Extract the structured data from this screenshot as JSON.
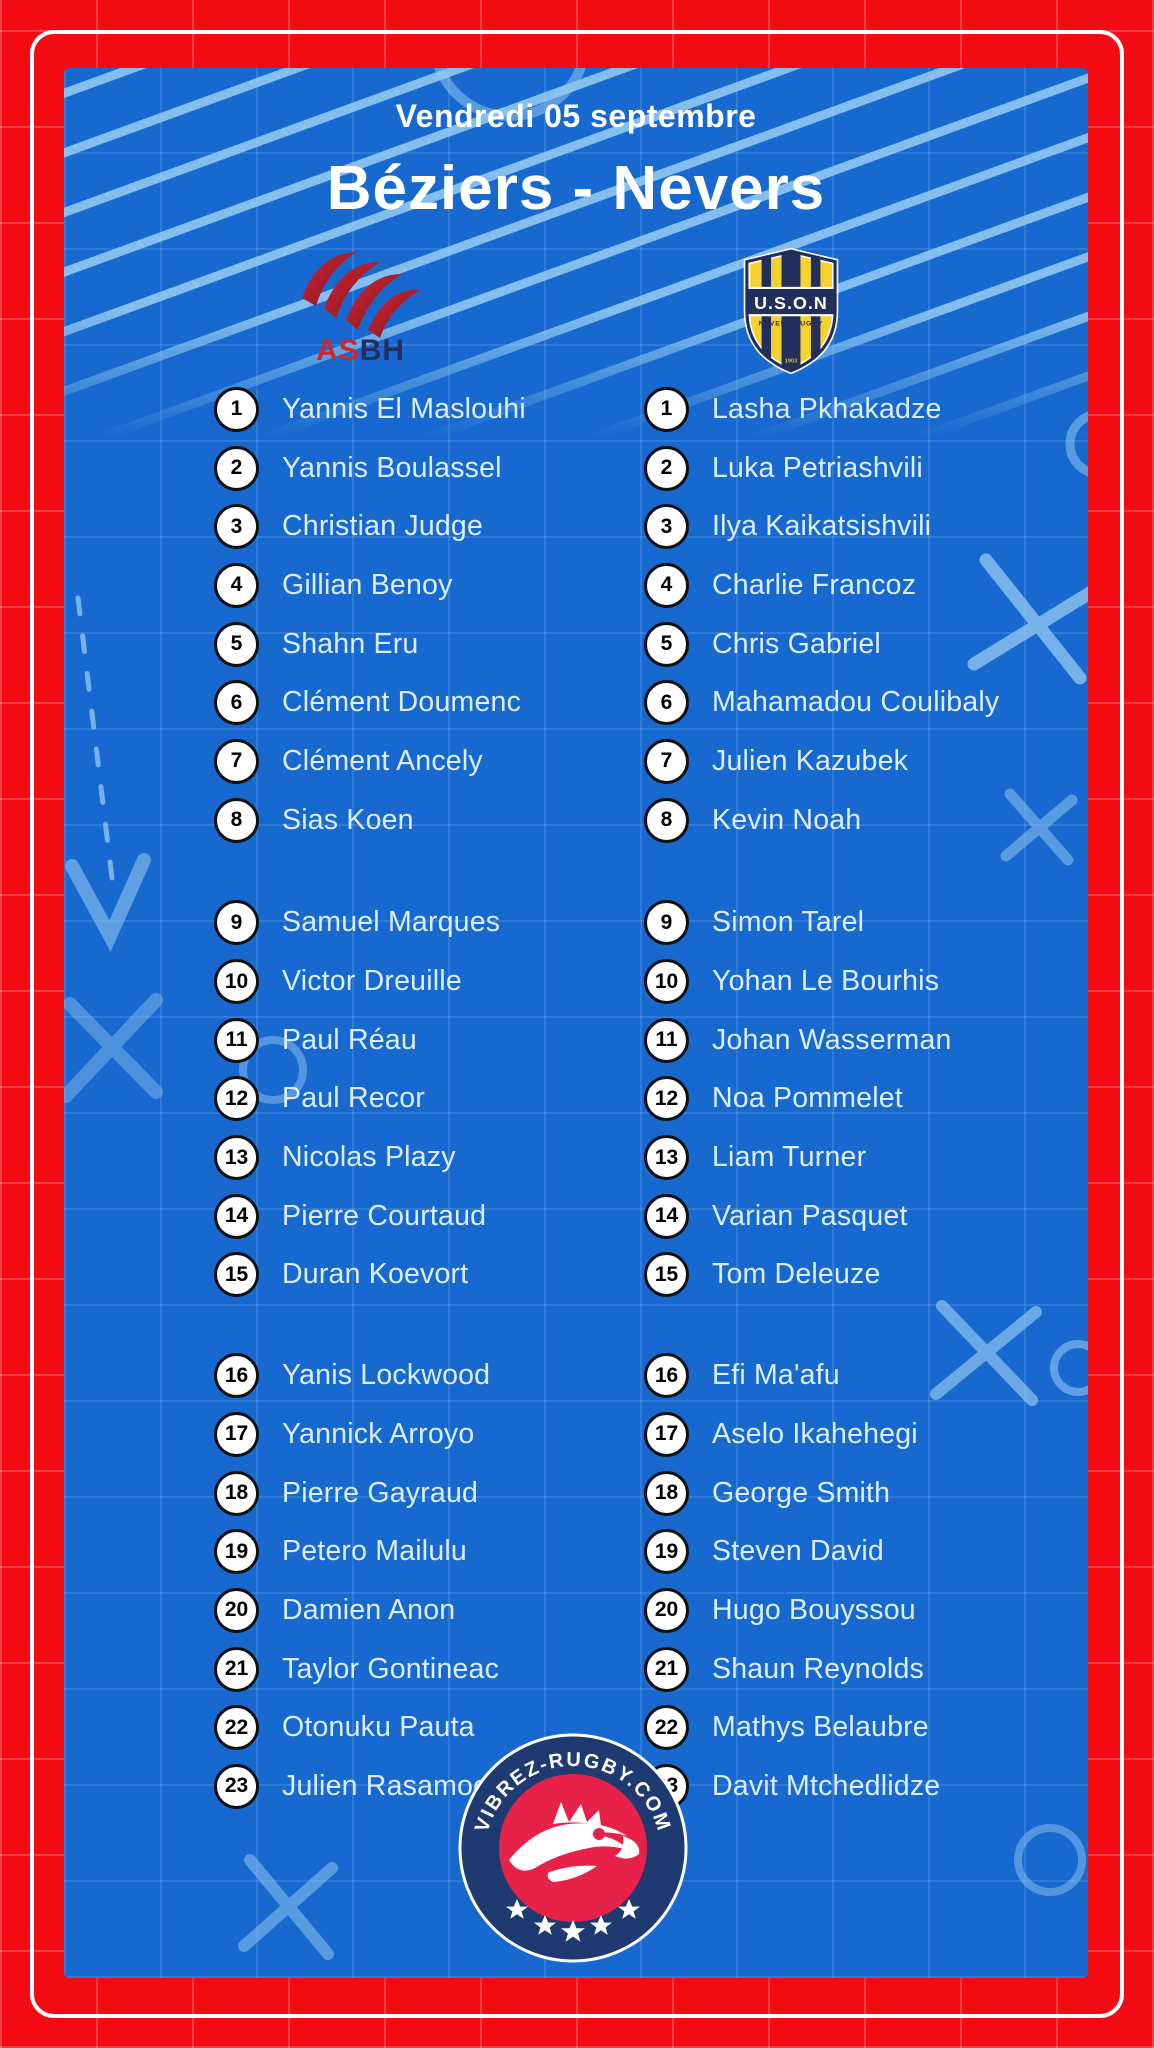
{
  "header": {
    "date": "Vendredi 05 septembre",
    "title": "Béziers - Nevers"
  },
  "teams": {
    "home": {
      "name": "Béziers",
      "crest": "asbh-crest",
      "crest_text_primary": "AS",
      "crest_text_secondary": "BH",
      "players": [
        {
          "num": 1,
          "name": "Yannis El Maslouhi"
        },
        {
          "num": 2,
          "name": "Yannis Boulassel"
        },
        {
          "num": 3,
          "name": "Christian Judge"
        },
        {
          "num": 4,
          "name": "Gillian Benoy"
        },
        {
          "num": 5,
          "name": "Shahn Eru"
        },
        {
          "num": 6,
          "name": "Clément Doumenc"
        },
        {
          "num": 7,
          "name": "Clément Ancely"
        },
        {
          "num": 8,
          "name": "Sias Koen"
        },
        {
          "num": 9,
          "name": "Samuel Marques"
        },
        {
          "num": 10,
          "name": "Victor Dreuille"
        },
        {
          "num": 11,
          "name": "Paul Réau"
        },
        {
          "num": 12,
          "name": "Paul Recor"
        },
        {
          "num": 13,
          "name": "Nicolas Plazy"
        },
        {
          "num": 14,
          "name": "Pierre Courtaud"
        },
        {
          "num": 15,
          "name": "Duran Koevort"
        },
        {
          "num": 16,
          "name": "Yanis Lockwood"
        },
        {
          "num": 17,
          "name": "Yannick Arroyo"
        },
        {
          "num": 18,
          "name": "Pierre Gayraud"
        },
        {
          "num": 19,
          "name": "Petero Mailulu"
        },
        {
          "num": 20,
          "name": "Damien Anon"
        },
        {
          "num": 21,
          "name": "Taylor Gontineac"
        },
        {
          "num": 22,
          "name": "Otonuku Pauta"
        },
        {
          "num": 23,
          "name": "Julien Rasamoelina"
        }
      ]
    },
    "away": {
      "name": "Nevers",
      "crest": "uson-crest",
      "crest_text": "U.S.O.N",
      "crest_subtext": "NEVERS RUGBY",
      "crest_year": "1903",
      "players": [
        {
          "num": 1,
          "name": "Lasha Pkhakadze"
        },
        {
          "num": 2,
          "name": "Luka Petriashvili"
        },
        {
          "num": 3,
          "name": "Ilya Kaikatsishvili"
        },
        {
          "num": 4,
          "name": "Charlie Francoz"
        },
        {
          "num": 5,
          "name": "Chris Gabriel"
        },
        {
          "num": 6,
          "name": "Mahamadou Coulibaly"
        },
        {
          "num": 7,
          "name": "Julien Kazubek"
        },
        {
          "num": 8,
          "name": "Kevin Noah"
        },
        {
          "num": 9,
          "name": "Simon Tarel"
        },
        {
          "num": 10,
          "name": "Yohan Le Bourhis"
        },
        {
          "num": 11,
          "name": "Johan Wasserman"
        },
        {
          "num": 12,
          "name": "Noa Pommelet"
        },
        {
          "num": 13,
          "name": "Liam Turner"
        },
        {
          "num": 14,
          "name": "Varian Pasquet"
        },
        {
          "num": 15,
          "name": "Tom Deleuze"
        },
        {
          "num": 16,
          "name": "Efi Ma'afu"
        },
        {
          "num": 17,
          "name": "Aselo Ikahehegi"
        },
        {
          "num": 18,
          "name": "George Smith"
        },
        {
          "num": 19,
          "name": "Steven David"
        },
        {
          "num": 20,
          "name": "Hugo Bouyssou"
        },
        {
          "num": 21,
          "name": "Shaun Reynolds"
        },
        {
          "num": 22,
          "name": "Mathys Belaubre"
        },
        {
          "num": 23,
          "name": "Davit Mtchedlidze"
        }
      ]
    }
  },
  "footer_badge": {
    "text": "VIBREZ-RUGBY.COM"
  },
  "colors": {
    "frame_red": "#f30b13",
    "board_blue": "#1869cf",
    "tactic_light_blue": "#8ec4ef",
    "name_text": "#dceefe",
    "badge_navy": "#1e3a70",
    "badge_red": "#e62248",
    "uson_yellow": "#f7d22e",
    "uson_navy": "#222f5c",
    "asbh_red": "#c41f2c",
    "asbh_navy": "#232e63"
  }
}
